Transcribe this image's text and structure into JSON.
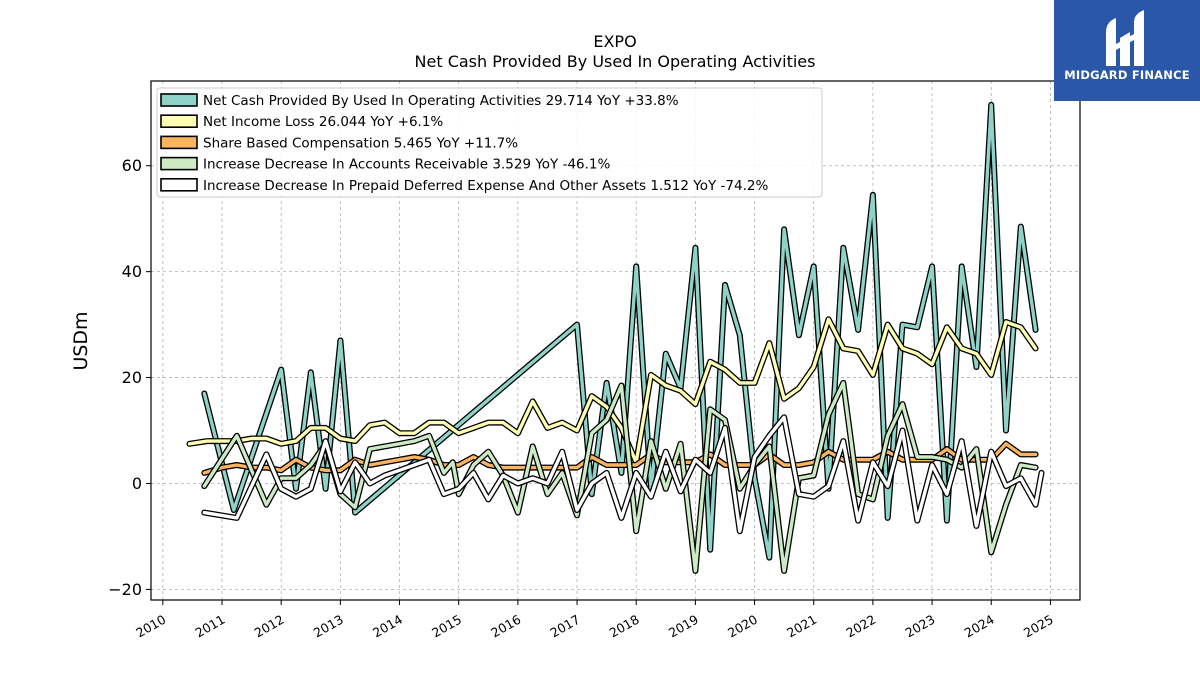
{
  "logo": {
    "text": "MIDGARD FINANCE",
    "bg": "#2a57a8"
  },
  "chart_data": {
    "type": "line",
    "title": "EXPO",
    "subtitle": "Net Cash Provided By Used In Operating Activities",
    "xlabel": "",
    "ylabel": "USDm",
    "xlim": [
      2009.8,
      2025.5
    ],
    "ylim": [
      -22,
      76
    ],
    "yticks": [
      -20,
      0,
      20,
      40,
      60
    ],
    "xticks": [
      2010,
      2011,
      2012,
      2013,
      2014,
      2015,
      2016,
      2017,
      2018,
      2019,
      2020,
      2021,
      2022,
      2023,
      2024,
      2025
    ],
    "grid": true,
    "legend_position": "top-left",
    "series": [
      {
        "name": "Net Cash Provided By Used In Operating Activities",
        "legend": "Net Cash Provided By Used In Operating Activities  29.714 YoY +33.8%",
        "color": "#8dd3c7",
        "points": [
          [
            2010.7,
            17
          ],
          [
            2011.2,
            -5
          ],
          [
            2012.0,
            21.5
          ],
          [
            2012.25,
            -1
          ],
          [
            2012.5,
            21
          ],
          [
            2012.75,
            -1
          ],
          [
            2013.0,
            27
          ],
          [
            2013.25,
            -5.5
          ],
          [
            2017.0,
            30
          ],
          [
            2017.25,
            -2
          ],
          [
            2017.5,
            19
          ],
          [
            2017.75,
            2
          ],
          [
            2018.0,
            41
          ],
          [
            2018.25,
            -1
          ],
          [
            2018.5,
            24.5
          ],
          [
            2018.75,
            18
          ],
          [
            2019.0,
            44.5
          ],
          [
            2019.25,
            -12.5
          ],
          [
            2019.5,
            37.5
          ],
          [
            2019.75,
            28
          ],
          [
            2020.0,
            1
          ],
          [
            2020.25,
            -14
          ],
          [
            2020.5,
            48
          ],
          [
            2020.75,
            28
          ],
          [
            2021.0,
            41
          ],
          [
            2021.25,
            -1
          ],
          [
            2021.5,
            44.5
          ],
          [
            2021.75,
            29
          ],
          [
            2022.0,
            54.5
          ],
          [
            2022.25,
            -6.5
          ],
          [
            2022.5,
            30
          ],
          [
            2022.75,
            29.5
          ],
          [
            2023.0,
            41
          ],
          [
            2023.25,
            -7
          ],
          [
            2023.5,
            41
          ],
          [
            2023.75,
            22
          ],
          [
            2024.0,
            71.5
          ],
          [
            2024.25,
            10
          ],
          [
            2024.5,
            48.5
          ],
          [
            2024.75,
            29
          ]
        ]
      },
      {
        "name": "Net Income Loss",
        "legend": "Net Income Loss  26.044 YoY +6.1%",
        "color": "#ffffb3",
        "points": [
          [
            2010.45,
            7.5
          ],
          [
            2010.75,
            8
          ],
          [
            2011.0,
            8
          ],
          [
            2011.25,
            8
          ],
          [
            2011.5,
            8.5
          ],
          [
            2011.75,
            8.5
          ],
          [
            2012.0,
            7.5
          ],
          [
            2012.25,
            8
          ],
          [
            2012.5,
            10.5
          ],
          [
            2012.75,
            10.5
          ],
          [
            2013.0,
            8.5
          ],
          [
            2013.25,
            8
          ],
          [
            2013.5,
            11
          ],
          [
            2013.75,
            11.5
          ],
          [
            2014.0,
            9.5
          ],
          [
            2014.25,
            9.5
          ],
          [
            2014.5,
            11.5
          ],
          [
            2014.75,
            11.5
          ],
          [
            2015.0,
            9.5
          ],
          [
            2015.25,
            10.5
          ],
          [
            2015.5,
            11.5
          ],
          [
            2015.75,
            11.5
          ],
          [
            2016.0,
            9.5
          ],
          [
            2016.25,
            15.5
          ],
          [
            2016.5,
            10.5
          ],
          [
            2016.75,
            11.5
          ],
          [
            2017.0,
            10
          ],
          [
            2017.25,
            16.5
          ],
          [
            2017.5,
            14.5
          ],
          [
            2017.75,
            10.5
          ],
          [
            2018.0,
            4
          ],
          [
            2018.25,
            20.5
          ],
          [
            2018.5,
            18.5
          ],
          [
            2018.75,
            17.5
          ],
          [
            2019.0,
            15
          ],
          [
            2019.25,
            23
          ],
          [
            2019.5,
            21.5
          ],
          [
            2019.75,
            19
          ],
          [
            2020.0,
            19
          ],
          [
            2020.25,
            26.5
          ],
          [
            2020.5,
            16
          ],
          [
            2020.75,
            18
          ],
          [
            2021.0,
            22
          ],
          [
            2021.25,
            31
          ],
          [
            2021.5,
            25.5
          ],
          [
            2021.75,
            25
          ],
          [
            2022.0,
            20.5
          ],
          [
            2022.25,
            30
          ],
          [
            2022.5,
            25.5
          ],
          [
            2022.75,
            24.5
          ],
          [
            2023.0,
            22.5
          ],
          [
            2023.25,
            29.5
          ],
          [
            2023.5,
            25.5
          ],
          [
            2023.75,
            24.5
          ],
          [
            2024.0,
            20.5
          ],
          [
            2024.25,
            30.5
          ],
          [
            2024.5,
            29.5
          ],
          [
            2024.75,
            25.5
          ]
        ]
      },
      {
        "name": "Share Based Compensation",
        "legend": "Share Based Compensation  5.465 YoY +11.7%",
        "color": "#fdb462",
        "points": [
          [
            2010.7,
            2
          ],
          [
            2011.0,
            3
          ],
          [
            2011.25,
            3.5
          ],
          [
            2011.5,
            3
          ],
          [
            2011.75,
            3
          ],
          [
            2012.0,
            2.5
          ],
          [
            2012.25,
            4.5
          ],
          [
            2012.5,
            3
          ],
          [
            2012.75,
            2.5
          ],
          [
            2013.0,
            2.5
          ],
          [
            2013.25,
            4.5
          ],
          [
            2013.5,
            3.5
          ],
          [
            2013.75,
            4
          ],
          [
            2014.0,
            4.5
          ],
          [
            2014.25,
            5
          ],
          [
            2014.5,
            4.5
          ],
          [
            2014.75,
            3.5
          ],
          [
            2015.0,
            3.5
          ],
          [
            2015.25,
            5
          ],
          [
            2015.5,
            3.5
          ],
          [
            2015.75,
            3
          ],
          [
            2016.0,
            3
          ],
          [
            2016.25,
            3
          ],
          [
            2016.5,
            3
          ],
          [
            2016.75,
            3
          ],
          [
            2017.0,
            3
          ],
          [
            2017.25,
            5
          ],
          [
            2017.5,
            3.5
          ],
          [
            2017.75,
            3.5
          ],
          [
            2018.0,
            3.5
          ],
          [
            2018.25,
            5.5
          ],
          [
            2018.5,
            4
          ],
          [
            2018.75,
            4
          ],
          [
            2019.0,
            4
          ],
          [
            2019.25,
            5.5
          ],
          [
            2019.5,
            3.5
          ],
          [
            2019.75,
            3.5
          ],
          [
            2020.0,
            3.5
          ],
          [
            2020.25,
            5.5
          ],
          [
            2020.5,
            3.5
          ],
          [
            2020.75,
            3.5
          ],
          [
            2021.0,
            4
          ],
          [
            2021.25,
            6
          ],
          [
            2021.5,
            4.5
          ],
          [
            2021.75,
            4.5
          ],
          [
            2022.0,
            4.5
          ],
          [
            2022.25,
            6
          ],
          [
            2022.5,
            4.5
          ],
          [
            2022.75,
            4.5
          ],
          [
            2023.0,
            4.5
          ],
          [
            2023.25,
            6.5
          ],
          [
            2023.5,
            4.5
          ],
          [
            2023.75,
            4.5
          ],
          [
            2024.0,
            4.5
          ],
          [
            2024.25,
            7.5
          ],
          [
            2024.5,
            5.5
          ],
          [
            2024.75,
            5.5
          ]
        ]
      },
      {
        "name": "Increase Decrease In Accounts Receivable",
        "legend": "Increase Decrease In Accounts Receivable  3.529 YoY -46.1%",
        "color": "#ccebc5",
        "points": [
          [
            2010.7,
            -0.5
          ],
          [
            2011.25,
            9
          ],
          [
            2011.75,
            -4
          ],
          [
            2012.0,
            1
          ],
          [
            2012.25,
            1
          ],
          [
            2012.5,
            3.5
          ],
          [
            2012.75,
            7.5
          ],
          [
            2013.0,
            -2
          ],
          [
            2013.25,
            -4.5
          ],
          [
            2013.5,
            6.5
          ],
          [
            2013.75,
            7
          ],
          [
            2014.0,
            7.5
          ],
          [
            2014.25,
            8
          ],
          [
            2014.5,
            9
          ],
          [
            2014.75,
            2
          ],
          [
            2014.9,
            4
          ],
          [
            2015.0,
            -2
          ],
          [
            2015.25,
            3.5
          ],
          [
            2015.5,
            6
          ],
          [
            2015.75,
            1.5
          ],
          [
            2016.0,
            -5.5
          ],
          [
            2016.25,
            7
          ],
          [
            2016.5,
            -2
          ],
          [
            2016.75,
            2
          ],
          [
            2017.0,
            -6
          ],
          [
            2017.25,
            9.5
          ],
          [
            2017.5,
            12
          ],
          [
            2017.75,
            18.5
          ],
          [
            2018.0,
            -9
          ],
          [
            2018.25,
            8
          ],
          [
            2018.5,
            -1
          ],
          [
            2018.75,
            7.5
          ],
          [
            2019.0,
            -16.5
          ],
          [
            2019.25,
            14
          ],
          [
            2019.5,
            12
          ],
          [
            2019.75,
            -1
          ],
          [
            2020.0,
            3.5
          ],
          [
            2020.25,
            7
          ],
          [
            2020.5,
            -16.5
          ],
          [
            2020.75,
            1
          ],
          [
            2021.0,
            1.5
          ],
          [
            2021.25,
            13
          ],
          [
            2021.5,
            19
          ],
          [
            2021.75,
            -2
          ],
          [
            2022.0,
            -3
          ],
          [
            2022.25,
            9
          ],
          [
            2022.5,
            15
          ],
          [
            2022.75,
            5
          ],
          [
            2023.0,
            5
          ],
          [
            2023.25,
            4.5
          ],
          [
            2023.5,
            3
          ],
          [
            2023.75,
            6.5
          ],
          [
            2024.0,
            -13
          ],
          [
            2024.25,
            -4
          ],
          [
            2024.5,
            3.5
          ],
          [
            2024.75,
            3
          ]
        ]
      },
      {
        "name": "Increase Decrease In Prepaid Deferred Expense And Other Assets",
        "legend": "Increase Decrease In Prepaid Deferred Expense And Other Assets  1.512 YoY -74.2%",
        "color": "#ffffff",
        "points": [
          [
            2010.7,
            -5.5
          ],
          [
            2011.25,
            -6.5
          ],
          [
            2011.75,
            5.5
          ],
          [
            2012.0,
            -1
          ],
          [
            2012.25,
            -2.5
          ],
          [
            2012.5,
            -1
          ],
          [
            2012.75,
            8
          ],
          [
            2013.0,
            -1.5
          ],
          [
            2013.25,
            4
          ],
          [
            2013.5,
            0
          ],
          [
            2013.75,
            1.5
          ],
          [
            2014.0,
            2.5
          ],
          [
            2014.25,
            3.5
          ],
          [
            2014.5,
            4.5
          ],
          [
            2014.75,
            -2
          ],
          [
            2015.0,
            -1
          ],
          [
            2015.25,
            2
          ],
          [
            2015.5,
            -3
          ],
          [
            2015.75,
            1.5
          ],
          [
            2016.0,
            0
          ],
          [
            2016.25,
            1
          ],
          [
            2016.5,
            0
          ],
          [
            2016.75,
            6
          ],
          [
            2017.0,
            -5
          ],
          [
            2017.25,
            0
          ],
          [
            2017.5,
            2
          ],
          [
            2017.75,
            -6.5
          ],
          [
            2018.0,
            2
          ],
          [
            2018.25,
            -2.5
          ],
          [
            2018.5,
            6
          ],
          [
            2018.75,
            -1.5
          ],
          [
            2019.0,
            4.5
          ],
          [
            2019.25,
            2
          ],
          [
            2019.5,
            10.5
          ],
          [
            2019.75,
            -9
          ],
          [
            2020.0,
            5
          ],
          [
            2020.25,
            9
          ],
          [
            2020.5,
            12.5
          ],
          [
            2020.75,
            -2
          ],
          [
            2021.0,
            -2.5
          ],
          [
            2021.25,
            -0.5
          ],
          [
            2021.5,
            8
          ],
          [
            2021.75,
            -7
          ],
          [
            2022.0,
            4
          ],
          [
            2022.25,
            -0.5
          ],
          [
            2022.5,
            10
          ],
          [
            2022.75,
            -7
          ],
          [
            2023.0,
            3.5
          ],
          [
            2023.25,
            -2
          ],
          [
            2023.5,
            8
          ],
          [
            2023.75,
            -8
          ],
          [
            2024.0,
            6
          ],
          [
            2024.25,
            -0.5
          ],
          [
            2024.5,
            1
          ],
          [
            2024.75,
            -4
          ],
          [
            2024.85,
            2
          ]
        ]
      }
    ]
  }
}
